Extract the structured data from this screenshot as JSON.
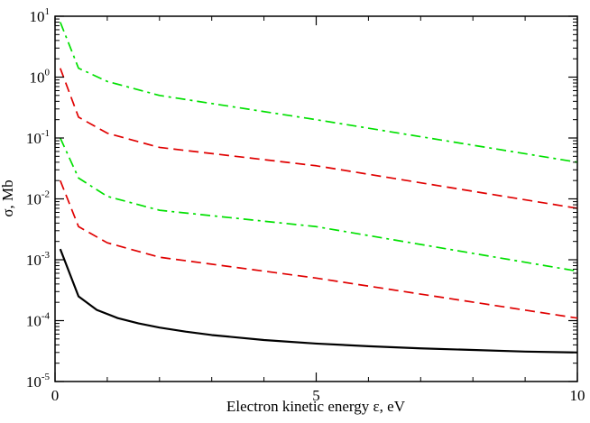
{
  "chart_data": {
    "type": "line",
    "title": "",
    "xlabel": "Electron kinetic energy  ε,  eV",
    "ylabel": "σ, Mb",
    "xlim": [
      0,
      10
    ],
    "ylim_log10": [
      -5,
      1
    ],
    "y_scale": "log",
    "grid": false,
    "legend": "none",
    "x_ticks": [
      {
        "value": 0,
        "label": "0"
      },
      {
        "value": 5,
        "label": "5"
      },
      {
        "value": 10,
        "label": "10"
      }
    ],
    "y_ticks": [
      {
        "exp": 1,
        "base": "10",
        "sup": "1"
      },
      {
        "exp": 0,
        "base": "10",
        "sup": "0"
      },
      {
        "exp": -1,
        "base": "10",
        "sup": "-1"
      },
      {
        "exp": -2,
        "base": "10",
        "sup": "-2"
      },
      {
        "exp": -3,
        "base": "10",
        "sup": "-3"
      },
      {
        "exp": -4,
        "base": "10",
        "sup": "-4"
      },
      {
        "exp": -5,
        "base": "10",
        "sup": "-5"
      }
    ],
    "series": [
      {
        "color": "#00e000",
        "dash": "dashdot",
        "points": [
          [
            0.1,
            8.0
          ],
          [
            0.45,
            1.4
          ],
          [
            1.0,
            0.85
          ],
          [
            2.0,
            0.5
          ],
          [
            5.0,
            0.2
          ],
          [
            10.0,
            0.04
          ]
        ]
      },
      {
        "color": "#e00000",
        "dash": "dash",
        "points": [
          [
            0.1,
            1.4
          ],
          [
            0.45,
            0.22
          ],
          [
            1.0,
            0.12
          ],
          [
            2.0,
            0.07
          ],
          [
            5.0,
            0.035
          ],
          [
            10.0,
            0.007
          ]
        ]
      },
      {
        "color": "#00e000",
        "dash": "dashdot",
        "points": [
          [
            0.1,
            0.1
          ],
          [
            0.45,
            0.022
          ],
          [
            1.0,
            0.011
          ],
          [
            2.0,
            0.0065
          ],
          [
            5.0,
            0.0035
          ],
          [
            10.0,
            0.00065
          ]
        ]
      },
      {
        "color": "#e00000",
        "dash": "dash",
        "points": [
          [
            0.1,
            0.02
          ],
          [
            0.45,
            0.0035
          ],
          [
            1.0,
            0.0019
          ],
          [
            2.0,
            0.0011
          ],
          [
            5.0,
            0.0005
          ],
          [
            10.0,
            0.00011
          ]
        ]
      },
      {
        "color": "#000000",
        "dash": "solid",
        "points": [
          [
            0.1,
            0.0015
          ],
          [
            0.45,
            0.00025
          ],
          [
            0.8,
            0.00015
          ],
          [
            1.2,
            0.00011
          ],
          [
            1.6,
            9e-05
          ],
          [
            2.0,
            7.7e-05
          ],
          [
            2.5,
            6.6e-05
          ],
          [
            3.0,
            5.8e-05
          ],
          [
            4.0,
            4.8e-05
          ],
          [
            5.0,
            4.2e-05
          ],
          [
            6.0,
            3.8e-05
          ],
          [
            7.0,
            3.5e-05
          ],
          [
            8.0,
            3.3e-05
          ],
          [
            9.0,
            3.1e-05
          ],
          [
            10.0,
            3e-05
          ]
        ]
      }
    ]
  }
}
